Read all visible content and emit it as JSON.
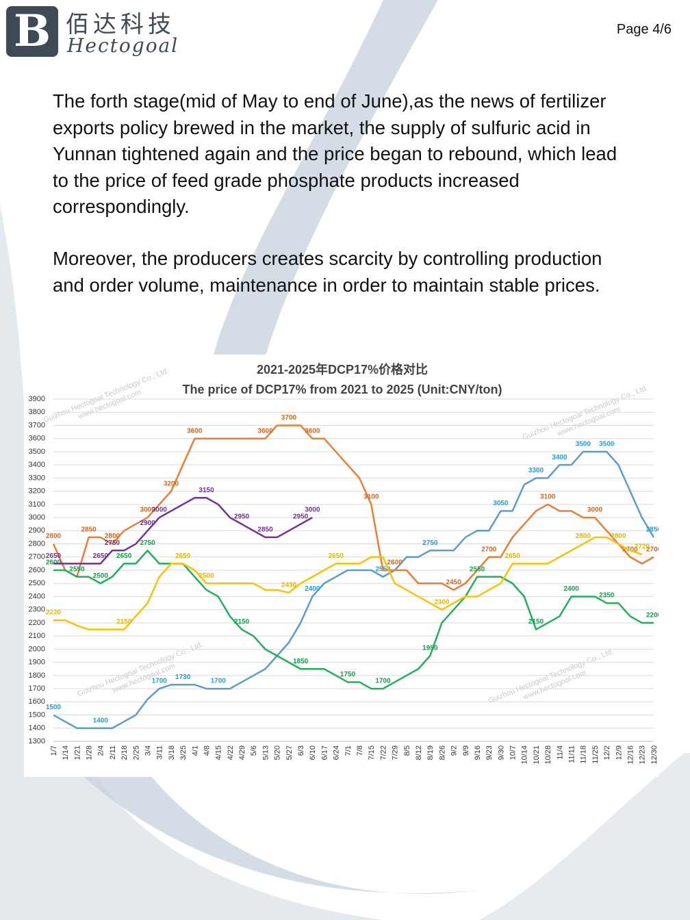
{
  "header": {
    "brand_cn": "佰达科技",
    "brand_en": "Hectogoal",
    "page": "Page 4/6"
  },
  "paragraphs": [
    "The forth stage(mid of May to end of June),as the news of fertilizer exports policy brewed in the market, the supply of sulfuric acid in Yunnan tightened again and the price began to rebound, which lead to the price of feed grade phosphate products increased correspondingly.",
    "Moreover, the producers creates scarcity by controlling production and order volume, maintenance in order to maintain stable prices."
  ],
  "chart_data": {
    "type": "line",
    "title": "2021-2025年DCP17%价格对比",
    "subtitle": "The price of DCP17% from 2021 to 2025 (Unit:CNY/ton)",
    "watermark": [
      "Guizhou Hectogoal Technology Co., Ltd.",
      "www.hectogoal.com"
    ],
    "categories": [
      "1/7",
      "1/14",
      "1/21",
      "1/28",
      "2/4",
      "2/11",
      "2/18",
      "2/25",
      "3/4",
      "3/11",
      "3/18",
      "3/25",
      "4/1",
      "4/8",
      "4/15",
      "4/22",
      "4/29",
      "5/6",
      "5/13",
      "5/20",
      "5/27",
      "6/3",
      "6/10",
      "6/17",
      "6/24",
      "7/1",
      "7/8",
      "7/15",
      "7/22",
      "7/29",
      "8/5",
      "8/12",
      "8/19",
      "8/26",
      "9/2",
      "9/9",
      "9/16",
      "9/23",
      "9/30",
      "10/7",
      "10/14",
      "10/21",
      "10/28",
      "11/4",
      "11/11",
      "11/18",
      "11/25",
      "12/2",
      "12/9",
      "12/16",
      "12/23",
      "12/30"
    ],
    "ylim": [
      1300,
      3900
    ],
    "yticks": [
      1300,
      1400,
      1500,
      1600,
      1700,
      1800,
      1900,
      2000,
      2100,
      2200,
      2300,
      2400,
      2500,
      2600,
      2700,
      2800,
      2900,
      3000,
      3100,
      3200,
      3300,
      3400,
      3500,
      3600,
      3700,
      3800,
      3900
    ],
    "grid": true,
    "series": [
      {
        "color": "#5b9bd5",
        "label_color": "#1ba1e2",
        "values": [
          1500,
          1450,
          1400,
          1400,
          1400,
          1400,
          1450,
          1500,
          1620,
          1700,
          1730,
          1730,
          1730,
          1700,
          1700,
          1700,
          1750,
          1800,
          1850,
          1950,
          2050,
          2200,
          2400,
          2500,
          2550,
          2600,
          2600,
          2600,
          2550,
          2600,
          2700,
          2700,
          2750,
          2750,
          2750,
          2850,
          2900,
          2900,
          3050,
          3050,
          3250,
          3300,
          3300,
          3400,
          3400,
          3500,
          3500,
          3500,
          3400,
          3200,
          3000,
          2850
        ],
        "labeled": [
          0,
          4,
          9,
          11,
          14,
          22,
          28,
          32,
          38,
          41,
          43,
          45,
          47,
          51
        ]
      },
      {
        "color": "#ed7d31",
        "label_color": "#d9651c",
        "values": [
          2800,
          2600,
          2550,
          2850,
          2850,
          2800,
          2900,
          2950,
          3000,
          3100,
          3200,
          3400,
          3600,
          3600,
          3600,
          3600,
          3600,
          3600,
          3600,
          3700,
          3700,
          3700,
          3600,
          3600,
          3500,
          3400,
          3300,
          3100,
          2600,
          2600,
          2600,
          2500,
          2500,
          2500,
          2450,
          2500,
          2600,
          2700,
          2700,
          2850,
          2950,
          3050,
          3100,
          3050,
          3050,
          3000,
          3000,
          2900,
          2800,
          2700,
          2650,
          2700
        ],
        "labeled": [
          0,
          3,
          5,
          8,
          10,
          12,
          18,
          20,
          22,
          27,
          29,
          34,
          37,
          42,
          46,
          49,
          51
        ]
      },
      {
        "color": "#1fb15a",
        "label_color": "#12a24a",
        "values": [
          2600,
          2600,
          2550,
          2550,
          2500,
          2550,
          2650,
          2650,
          2750,
          2650,
          2650,
          2650,
          2550,
          2450,
          2400,
          2250,
          2150,
          2100,
          2000,
          1950,
          1900,
          1850,
          1850,
          1850,
          1800,
          1750,
          1750,
          1700,
          1700,
          1750,
          1800,
          1850,
          1950,
          2200,
          2300,
          2400,
          2550,
          2550,
          2550,
          2500,
          2400,
          2150,
          2200,
          2250,
          2400,
          2400,
          2400,
          2350,
          2350,
          2250,
          2200,
          2200
        ],
        "labeled": [
          0,
          2,
          4,
          6,
          8,
          16,
          21,
          25,
          28,
          32,
          36,
          41,
          44,
          47,
          51
        ]
      },
      {
        "color": "#ffc000",
        "label_color": "#f0b400",
        "values": [
          2220,
          2220,
          2180,
          2150,
          2150,
          2150,
          2150,
          2250,
          2350,
          2550,
          2650,
          2650,
          2600,
          2500,
          2500,
          2500,
          2500,
          2500,
          2450,
          2450,
          2430,
          2500,
          2550,
          2600,
          2650,
          2650,
          2650,
          2700,
          2700,
          2500,
          2450,
          2400,
          2350,
          2300,
          2350,
          2400,
          2400,
          2450,
          2500,
          2650,
          2650,
          2650,
          2650,
          2700,
          2750,
          2800,
          2850,
          2850,
          2800,
          2750,
          2720,
          null
        ],
        "labeled": [
          0,
          6,
          11,
          13,
          20,
          24,
          33,
          39,
          45,
          48,
          50
        ]
      },
      {
        "color": "#7030a0",
        "label_color": "#7030a0",
        "values": [
          2650,
          2650,
          2650,
          2650,
          2650,
          2750,
          2750,
          2800,
          2900,
          3000,
          3050,
          3100,
          3150,
          3150,
          3100,
          3000,
          2950,
          2900,
          2850,
          2850,
          2900,
          2950,
          3000,
          null,
          null,
          null,
          null,
          null,
          null,
          null,
          null,
          null,
          null,
          null,
          null,
          null,
          null,
          null,
          null,
          null,
          null,
          null,
          null,
          null,
          null,
          null,
          null,
          null,
          null,
          null,
          null,
          null
        ],
        "labeled": [
          0,
          4,
          5,
          8,
          9,
          13,
          16,
          18,
          21,
          22
        ]
      }
    ]
  }
}
